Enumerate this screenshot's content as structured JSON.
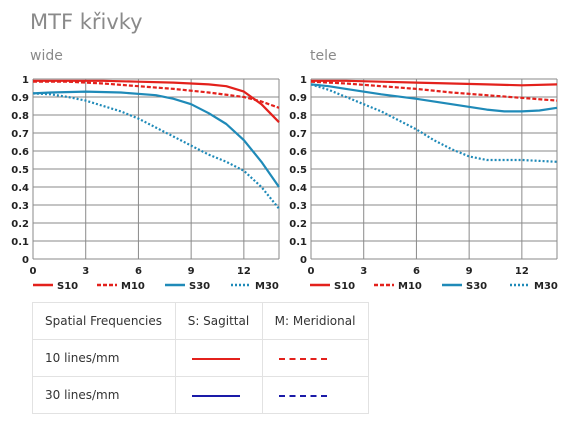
{
  "title": "MTF křivky",
  "chart_data": [
    {
      "type": "line",
      "title": "wide",
      "xlim": [
        0,
        14
      ],
      "ylim": [
        0,
        1
      ],
      "xticks": [
        0,
        3,
        6,
        9,
        12
      ],
      "yticks": [
        0,
        0.1,
        0.2,
        0.3,
        0.4,
        0.5,
        0.6,
        0.7,
        0.8,
        0.9,
        1
      ],
      "ytick_labels": [
        "0",
        "0.1",
        "0.2",
        "0.3",
        "0.4",
        "0.5",
        "0.6",
        "0.7",
        "0.8",
        "0.9",
        "1"
      ],
      "grid": true,
      "legend_position": "bottom",
      "series": [
        {
          "name": "S10",
          "color": "#e3211c",
          "dash": "solid",
          "x": [
            0,
            2,
            4,
            6,
            8,
            10,
            11,
            12,
            13,
            14
          ],
          "y": [
            0.99,
            0.99,
            0.99,
            0.985,
            0.98,
            0.97,
            0.96,
            0.93,
            0.86,
            0.76
          ]
        },
        {
          "name": "M10",
          "color": "#e3211c",
          "dash": "dashed",
          "x": [
            0,
            2,
            4,
            6,
            8,
            10,
            12,
            13,
            14
          ],
          "y": [
            0.985,
            0.985,
            0.975,
            0.96,
            0.945,
            0.925,
            0.9,
            0.875,
            0.84
          ]
        },
        {
          "name": "S30",
          "color": "#1f8ab8",
          "dash": "solid",
          "x": [
            0,
            1,
            3,
            5,
            7,
            8,
            9,
            10,
            11,
            12,
            13,
            14
          ],
          "y": [
            0.92,
            0.925,
            0.93,
            0.925,
            0.91,
            0.89,
            0.86,
            0.81,
            0.75,
            0.66,
            0.54,
            0.4
          ]
        },
        {
          "name": "M30",
          "color": "#1f8ab8",
          "dash": "dotted",
          "x": [
            0,
            1,
            2,
            3,
            4,
            5,
            6,
            7,
            8,
            9,
            10,
            11,
            12,
            13,
            14
          ],
          "y": [
            0.92,
            0.915,
            0.9,
            0.88,
            0.85,
            0.82,
            0.78,
            0.73,
            0.68,
            0.63,
            0.58,
            0.54,
            0.49,
            0.4,
            0.28
          ]
        }
      ]
    },
    {
      "type": "line",
      "title": "tele",
      "xlim": [
        0,
        14
      ],
      "ylim": [
        0,
        1
      ],
      "xticks": [
        0,
        3,
        6,
        9,
        12
      ],
      "yticks": [
        0,
        0.1,
        0.2,
        0.3,
        0.4,
        0.5,
        0.6,
        0.7,
        0.8,
        0.9,
        1
      ],
      "ytick_labels": [
        "0",
        "0.1",
        "0.2",
        "0.3",
        "0.4",
        "0.5",
        "0.6",
        "0.7",
        "0.8",
        "0.9",
        "1"
      ],
      "grid": true,
      "legend_position": "bottom",
      "series": [
        {
          "name": "S10",
          "color": "#e3211c",
          "dash": "solid",
          "x": [
            0,
            2,
            4,
            6,
            8,
            10,
            12,
            14
          ],
          "y": [
            0.99,
            0.99,
            0.985,
            0.98,
            0.975,
            0.97,
            0.965,
            0.97
          ]
        },
        {
          "name": "M10",
          "color": "#e3211c",
          "dash": "dashed",
          "x": [
            0,
            2,
            4,
            6,
            8,
            10,
            12,
            14
          ],
          "y": [
            0.985,
            0.975,
            0.96,
            0.945,
            0.925,
            0.91,
            0.895,
            0.88
          ]
        },
        {
          "name": "S30",
          "color": "#1f8ab8",
          "dash": "solid",
          "x": [
            0,
            1,
            2,
            4,
            6,
            8,
            10,
            11,
            12,
            13,
            14
          ],
          "y": [
            0.97,
            0.96,
            0.945,
            0.915,
            0.89,
            0.86,
            0.83,
            0.82,
            0.82,
            0.825,
            0.84
          ]
        },
        {
          "name": "M30",
          "color": "#1f8ab8",
          "dash": "dotted",
          "x": [
            0,
            1,
            2,
            3,
            4,
            5,
            6,
            7,
            8,
            9,
            10,
            11,
            12,
            13,
            14
          ],
          "y": [
            0.97,
            0.94,
            0.9,
            0.86,
            0.82,
            0.77,
            0.72,
            0.66,
            0.61,
            0.57,
            0.55,
            0.55,
            0.55,
            0.545,
            0.54
          ]
        }
      ]
    }
  ],
  "legend_table": {
    "headers": [
      "Spatial Frequencies",
      "S: Sagittal",
      "M: Meridional"
    ],
    "rows": [
      {
        "label": "10 lines/mm",
        "color": "#e3211c"
      },
      {
        "label": "30 lines/mm",
        "color": "#1a1aa8"
      }
    ]
  }
}
